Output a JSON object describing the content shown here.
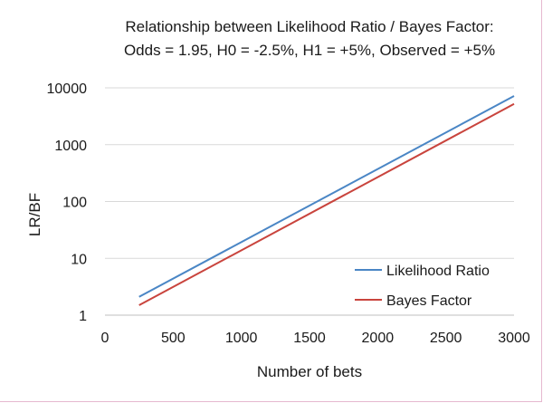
{
  "chart_data": {
    "type": "line",
    "title": "Relationship between Likelihood Ratio / Bayes Factor:",
    "subtitle": "Odds = 1.95, H0 = -2.5%, H1 = +5%, Observed = +5%",
    "xlabel": "Number of bets",
    "ylabel": "LR/BF",
    "xlim": [
      0,
      3000
    ],
    "ylim": [
      1,
      10000
    ],
    "yscale": "log",
    "x_ticks": [
      "0",
      "500",
      "1000",
      "1500",
      "2000",
      "2500",
      "3000"
    ],
    "y_ticks": [
      "1",
      "10",
      "100",
      "1000",
      "10000"
    ],
    "grid": true,
    "legend_position": "bottom-right",
    "series": [
      {
        "name": "Likelihood Ratio",
        "color": "#4a86c5",
        "x": [
          250,
          3000
        ],
        "y": [
          2.1,
          7200
        ]
      },
      {
        "name": "Bayes Factor",
        "color": "#c9443d",
        "x": [
          250,
          3000
        ],
        "y": [
          1.5,
          5200
        ]
      }
    ]
  }
}
